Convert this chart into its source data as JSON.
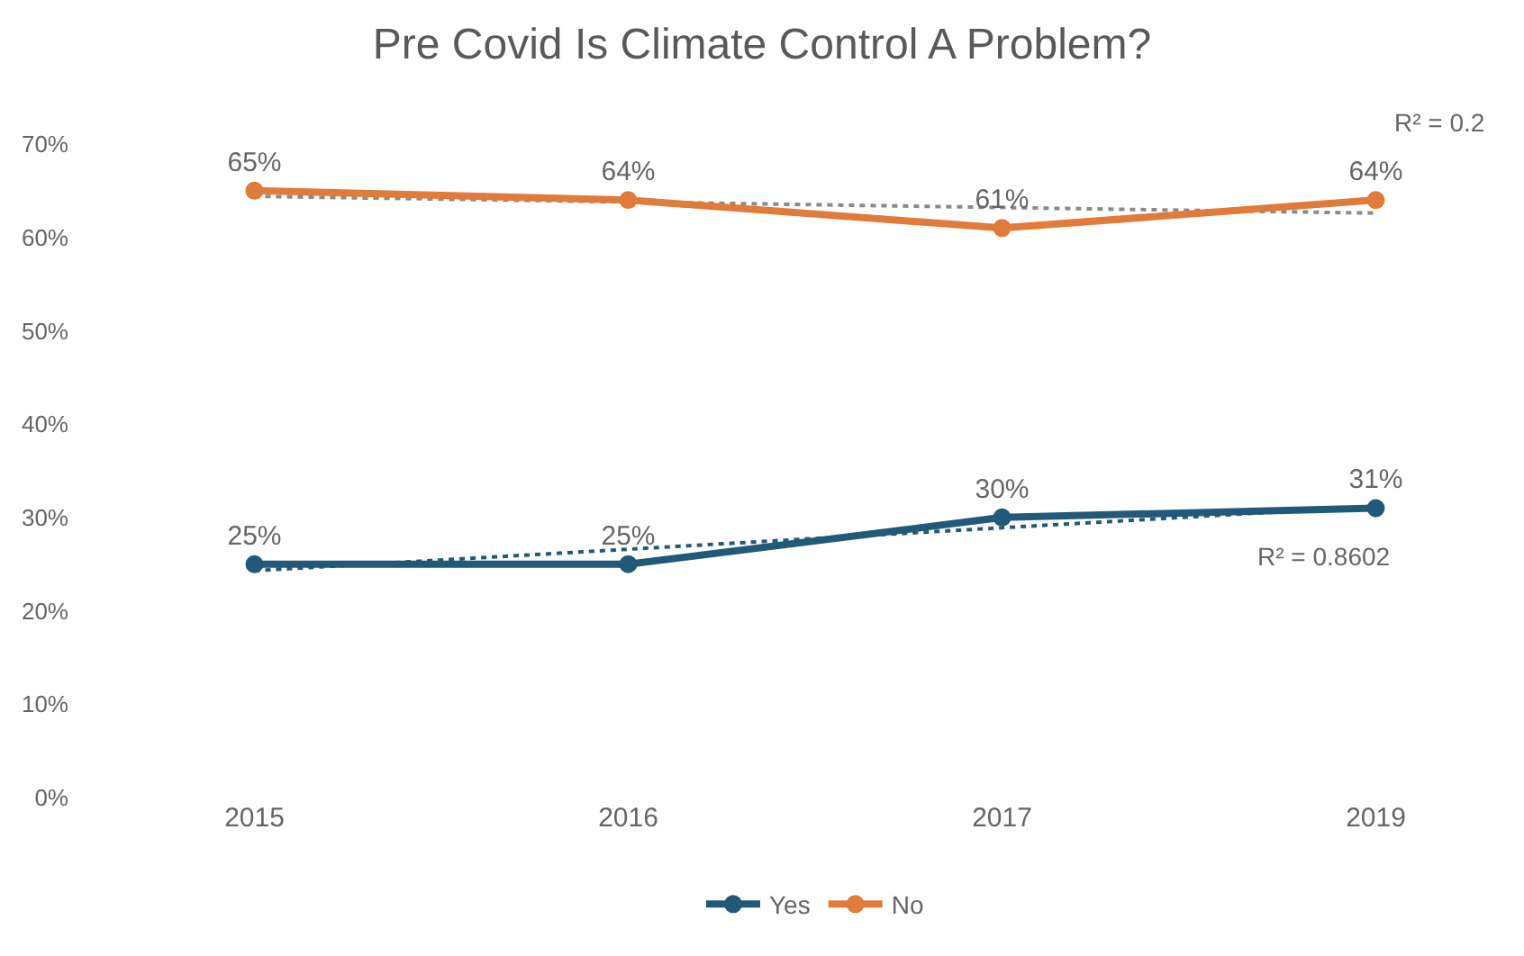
{
  "chart_data": {
    "type": "line",
    "title": "Pre Covid Is Climate Control A Problem?",
    "categories": [
      "2015",
      "2016",
      "2017",
      "2019"
    ],
    "series": [
      {
        "name": "Yes",
        "color": "#215a78",
        "values": [
          25,
          25,
          30,
          31
        ],
        "value_labels": [
          "25%",
          "25%",
          "30%",
          "31%"
        ],
        "marker": "circle"
      },
      {
        "name": "No",
        "color": "#e07b39",
        "values": [
          65,
          64,
          61,
          64
        ],
        "value_labels": [
          "65%",
          "64%",
          "61%",
          "64%"
        ],
        "marker": "circle"
      },
      {
        "color": "#215a78",
        "values": [
          24.3,
          26.6,
          28.9,
          31.2
        ],
        "line_style": "dotted",
        "marker": "none"
      },
      {
        "color": "#8a8a8a",
        "values": [
          64.4,
          63.8,
          63.2,
          62.6
        ],
        "line_style": "dotted",
        "marker": "none"
      }
    ],
    "annotations": [
      "R² = 0.2",
      "R² = 0.8602"
    ],
    "ylim": [
      0,
      70
    ],
    "yticks": [
      {
        "value": 0,
        "label": "0%"
      },
      {
        "value": 10,
        "label": "10%"
      },
      {
        "value": 20,
        "label": "20%"
      },
      {
        "value": 30,
        "label": "30%"
      },
      {
        "value": 40,
        "label": "40%"
      },
      {
        "value": 50,
        "label": "50%"
      },
      {
        "value": 60,
        "label": "60%"
      },
      {
        "value": 70,
        "label": "70%"
      }
    ],
    "legend": "bottom"
  }
}
